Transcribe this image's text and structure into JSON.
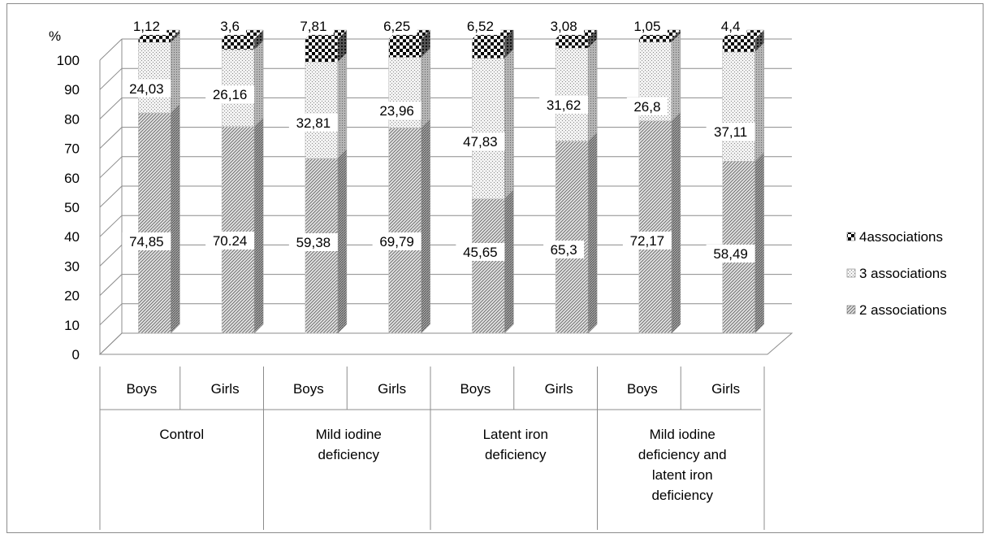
{
  "chart_data": {
    "type": "bar",
    "stacked": true,
    "three_d": true,
    "y_unit_label": "%",
    "ylim": [
      0,
      100
    ],
    "yticks": [
      "0",
      "10",
      "20",
      "30",
      "40",
      "50",
      "60",
      "70",
      "80",
      "90",
      "100"
    ],
    "grid": true,
    "legend_position": "right",
    "groups": [
      {
        "label": "Control",
        "lines": [
          "Control"
        ]
      },
      {
        "label": "Mild iodine deficiency",
        "lines": [
          "Mild iodine",
          "deficiency"
        ]
      },
      {
        "label": "Latent iron deficiency",
        "lines": [
          "Latent iron",
          "deficiency"
        ]
      },
      {
        "label": "Mild iodine deficiency and latent iron deficiency",
        "lines": [
          "Mild iodine",
          "deficiency and",
          "latent iron",
          "deficiency"
        ]
      }
    ],
    "categories": [
      "Boys",
      "Girls",
      "Boys",
      "Girls",
      "Boys",
      "Girls",
      "Boys",
      "Girls"
    ],
    "series": [
      {
        "name": "2 associations",
        "pattern": "diag",
        "values": [
          74.85,
          70.24,
          59.38,
          69.79,
          45.65,
          65.3,
          72.17,
          58.49
        ],
        "labels": [
          "74,85",
          "70.24",
          "59,38",
          "69,79",
          "45,65",
          "65,3",
          "72,17",
          "58,49"
        ]
      },
      {
        "name": "3 associations",
        "pattern": "dots",
        "values": [
          24.03,
          26.16,
          32.81,
          23.96,
          47.83,
          31.62,
          26.8,
          37.11
        ],
        "labels": [
          "24,03",
          "26,16",
          "32,81",
          "23,96",
          "47,83",
          "31,62",
          "26,8",
          "37,11"
        ]
      },
      {
        "name": "4associations",
        "pattern": "checker",
        "values": [
          1.12,
          3.6,
          7.81,
          6.25,
          6.52,
          3.08,
          1.05,
          4.4
        ],
        "labels": [
          "1,12",
          "3,6",
          "7,81",
          "6,25",
          "6,52",
          "3,08",
          "1,05",
          "4,4"
        ]
      }
    ],
    "legend_order": [
      "4associations",
      "3 associations",
      "2 associations"
    ]
  }
}
